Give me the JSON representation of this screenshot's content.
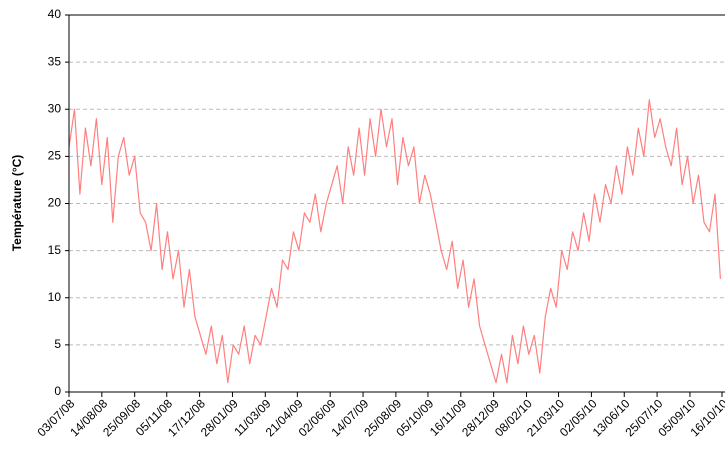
{
  "chart_data": {
    "type": "line",
    "y_label": "Température (°C)",
    "color": "#ff7f7f",
    "x": [
      "03/07/08",
      "10/07/08",
      "17/07/08",
      "24/07/08",
      "31/07/08",
      "07/08/08",
      "14/08/08",
      "21/08/08",
      "28/08/08",
      "04/09/08",
      "11/09/08",
      "18/09/08",
      "25/09/08",
      "02/10/08",
      "09/10/08",
      "16/10/08",
      "23/10/08",
      "30/10/08",
      "06/11/08",
      "13/11/08",
      "20/11/08",
      "27/11/08",
      "04/12/08",
      "11/12/08",
      "18/12/08",
      "25/12/08",
      "01/01/09",
      "08/01/09",
      "15/01/09",
      "22/01/09",
      "29/01/09",
      "05/02/09",
      "12/02/09",
      "19/02/09",
      "26/02/09",
      "05/03/09",
      "12/03/09",
      "19/03/09",
      "26/03/09",
      "02/04/09",
      "09/04/09",
      "16/04/09",
      "23/04/09",
      "30/04/09",
      "07/05/09",
      "14/05/09",
      "21/05/09",
      "28/05/09",
      "04/06/09",
      "11/06/09",
      "18/06/09",
      "25/06/09",
      "02/07/09",
      "09/07/09",
      "16/07/09",
      "23/07/09",
      "30/07/09",
      "06/08/09",
      "13/08/09",
      "20/08/09",
      "27/08/09",
      "03/09/09",
      "10/09/09",
      "17/09/09",
      "24/09/09",
      "01/10/09",
      "08/10/09",
      "15/10/09",
      "22/10/09",
      "29/10/09",
      "05/11/09",
      "12/11/09",
      "19/11/09",
      "26/11/09",
      "03/12/09",
      "10/12/09",
      "17/12/09",
      "24/12/09",
      "31/12/09",
      "07/01/10",
      "14/01/10",
      "21/01/10",
      "28/01/10",
      "04/02/10",
      "11/02/10",
      "18/02/10",
      "25/02/10",
      "04/03/10",
      "11/03/10",
      "18/03/10",
      "25/03/10",
      "01/04/10",
      "08/04/10",
      "15/04/10",
      "22/04/10",
      "29/04/10",
      "06/05/10",
      "13/05/10",
      "20/05/10",
      "27/05/10",
      "03/06/10",
      "10/06/10",
      "17/06/10",
      "24/06/10",
      "01/07/10",
      "08/07/10",
      "15/07/10",
      "22/07/10",
      "29/07/10",
      "05/08/10",
      "12/08/10",
      "19/08/10",
      "26/08/10",
      "02/09/10",
      "09/09/10",
      "16/09/10",
      "23/09/10",
      "30/09/10",
      "07/10/10",
      "14/10/10"
    ],
    "values": [
      26,
      30,
      21,
      28,
      24,
      29,
      22,
      27,
      18,
      25,
      27,
      23,
      25,
      19,
      18,
      15,
      20,
      13,
      17,
      12,
      15,
      9,
      13,
      8,
      6,
      4,
      7,
      3,
      6,
      1,
      5,
      4,
      7,
      3,
      6,
      5,
      8,
      11,
      9,
      14,
      13,
      17,
      15,
      19,
      18,
      21,
      17,
      20,
      22,
      24,
      20,
      26,
      23,
      28,
      23,
      29,
      25,
      30,
      26,
      29,
      22,
      27,
      24,
      26,
      20,
      23,
      21,
      18,
      15,
      13,
      16,
      11,
      14,
      9,
      12,
      7,
      5,
      3,
      1,
      4,
      1,
      6,
      3,
      7,
      4,
      6,
      2,
      8,
      11,
      9,
      15,
      13,
      17,
      15,
      19,
      16,
      21,
      18,
      22,
      20,
      24,
      21,
      26,
      23,
      28,
      25,
      31,
      27,
      29,
      26,
      24,
      28,
      22,
      25,
      20,
      23,
      18,
      17,
      21,
      12
    ],
    "xlim": [
      "03/07/08",
      "16/10/10"
    ],
    "xticks": [
      "03/07/08",
      "14/08/08",
      "25/09/08",
      "05/11/08",
      "17/12/08",
      "28/01/09",
      "11/03/09",
      "21/04/09",
      "02/06/09",
      "14/07/09",
      "25/08/09",
      "05/10/09",
      "16/11/09",
      "28/12/09",
      "08/02/10",
      "21/03/10",
      "02/05/10",
      "13/06/10",
      "25/07/10",
      "05/09/10",
      "16/10/10"
    ],
    "ylim": [
      0,
      40
    ],
    "yticks": [
      0,
      5,
      10,
      15,
      20,
      25,
      30,
      35,
      40
    ],
    "grid": true
  }
}
